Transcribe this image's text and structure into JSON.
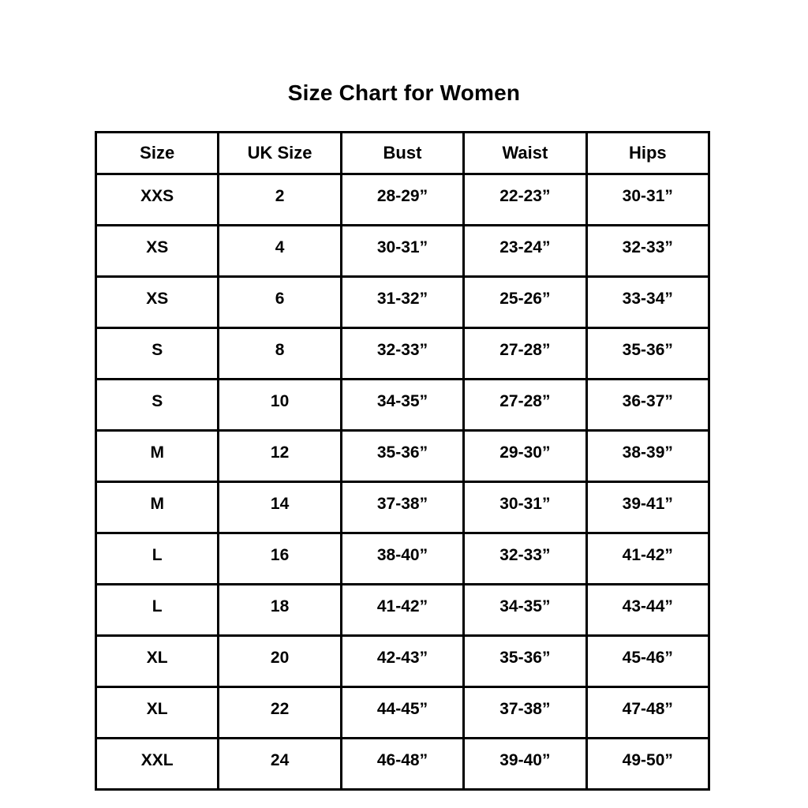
{
  "page_title": "Size Chart for Women",
  "colors": {
    "background": "#ffffff",
    "border": "#000000",
    "text": "#000000"
  },
  "chart_data": {
    "type": "table",
    "title": "Size Chart for Women",
    "columns": [
      "Size",
      "UK Size",
      "Bust",
      "Waist",
      "Hips"
    ],
    "rows": [
      [
        "XXS",
        "2",
        "28-29”",
        "22-23”",
        "30-31”"
      ],
      [
        "XS",
        "4",
        "30-31”",
        "23-24”",
        "32-33”"
      ],
      [
        "XS",
        "6",
        "31-32”",
        "25-26”",
        "33-34”"
      ],
      [
        "S",
        "8",
        "32-33”",
        "27-28”",
        "35-36”"
      ],
      [
        "S",
        "10",
        "34-35”",
        "27-28”",
        "36-37”"
      ],
      [
        "M",
        "12",
        "35-36”",
        "29-30”",
        "38-39”"
      ],
      [
        "M",
        "14",
        "37-38”",
        "30-31”",
        "39-41”"
      ],
      [
        "L",
        "16",
        "38-40”",
        "32-33”",
        "41-42”"
      ],
      [
        "L",
        "18",
        "41-42”",
        "34-35”",
        "43-44”"
      ],
      [
        "XL",
        "20",
        "42-43”",
        "35-36”",
        "45-46”"
      ],
      [
        "XL",
        "22",
        "44-45”",
        "37-38”",
        "47-48”"
      ],
      [
        "XXL",
        "24",
        "46-48”",
        "39-40”",
        "49-50”"
      ]
    ]
  }
}
